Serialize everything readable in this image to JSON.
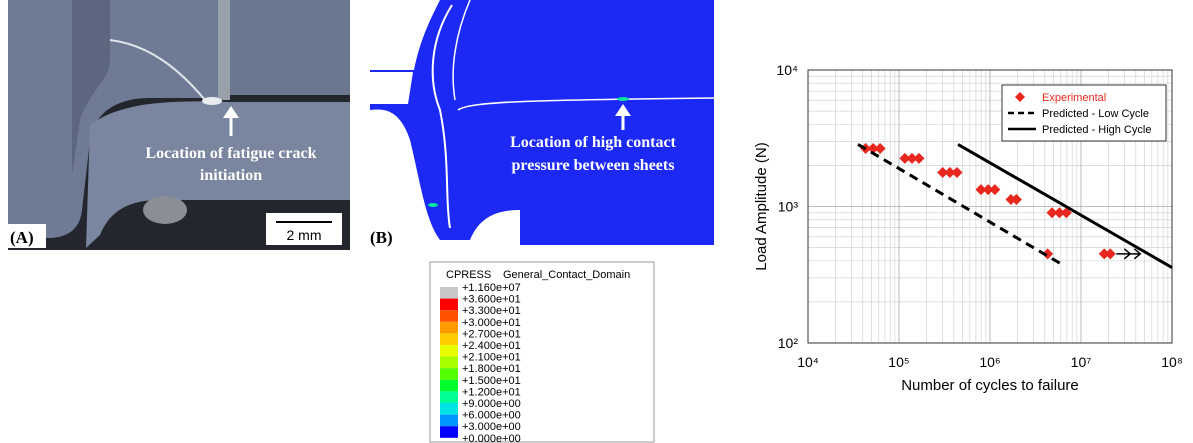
{
  "panel_a": {
    "label": "(A)",
    "annotation": [
      "Location of fatigue crack",
      "initiation"
    ],
    "scale_bar": "2 mm"
  },
  "panel_b": {
    "label": "(B)",
    "annotation": [
      "Location of high contact",
      "pressure between sheets"
    ]
  },
  "contour_legend": {
    "variable": "CPRESS",
    "domain": "General_Contact_Domain",
    "levels": [
      "+1.160e+07",
      "+3.600e+01",
      "+3.300e+01",
      "+3.000e+01",
      "+2.700e+01",
      "+2.400e+01",
      "+2.100e+01",
      "+1.800e+01",
      "+1.500e+01",
      "+1.200e+01",
      "+9.000e+00",
      "+6.000e+00",
      "+3.000e+00",
      "+0.000e+00"
    ],
    "colors": [
      "#c8c8c8",
      "#ff0000",
      "#ff5200",
      "#ff9a00",
      "#ffcc00",
      "#e8ff00",
      "#a6ff00",
      "#55ff00",
      "#00ff2a",
      "#00ff94",
      "#00e4e4",
      "#0096ff",
      "#0000ff"
    ]
  },
  "chart_data": {
    "type": "scatter",
    "x_label": "Number of cycles to failure",
    "y_label": "Load Amplitude (N)",
    "xscale": "log",
    "yscale": "log",
    "grid": true,
    "minor_grid": true,
    "legend": "upper right",
    "xlim": [
      10000,
      100000000
    ],
    "ylim": [
      100,
      10000
    ],
    "xticks": [
      {
        "value": 10000,
        "label": "10⁴"
      },
      {
        "value": 100000,
        "label": "10⁵"
      },
      {
        "value": 1000000,
        "label": "10⁶"
      },
      {
        "value": 10000000,
        "label": "10⁷"
      },
      {
        "value": 100000000,
        "label": "10⁸"
      }
    ],
    "yticks": [
      {
        "value": 100,
        "label": "10²"
      },
      {
        "value": 1000,
        "label": "10³"
      },
      {
        "value": 10000,
        "label": "10⁴"
      }
    ],
    "series": [
      {
        "name": "Experimental",
        "color": "#e8281e",
        "marker": "diamond",
        "x": [
          43000,
          52000,
          62000,
          116000,
          139000,
          166000,
          302000,
          363000,
          434000,
          795000,
          954000,
          1130000,
          1700000,
          1950000,
          4800000,
          5800000,
          6900000,
          4300000,
          18000000,
          21000000
        ],
        "values": [
          2660,
          2660,
          2660,
          2250,
          2250,
          2250,
          1775,
          1775,
          1775,
          1330,
          1330,
          1330,
          1125,
          1125,
          900,
          900,
          900,
          450,
          450,
          450
        ]
      },
      {
        "name": "Predicted - Low Cycle",
        "color": "#000000",
        "style": "dashed",
        "x": [
          35400,
          6200000
        ],
        "values": [
          2850,
          376
        ]
      },
      {
        "name": "Predicted - High Cycle",
        "color": "#000000",
        "style": "solid",
        "x": [
          445000,
          100000000
        ],
        "values": [
          2850,
          357
        ]
      }
    ]
  }
}
